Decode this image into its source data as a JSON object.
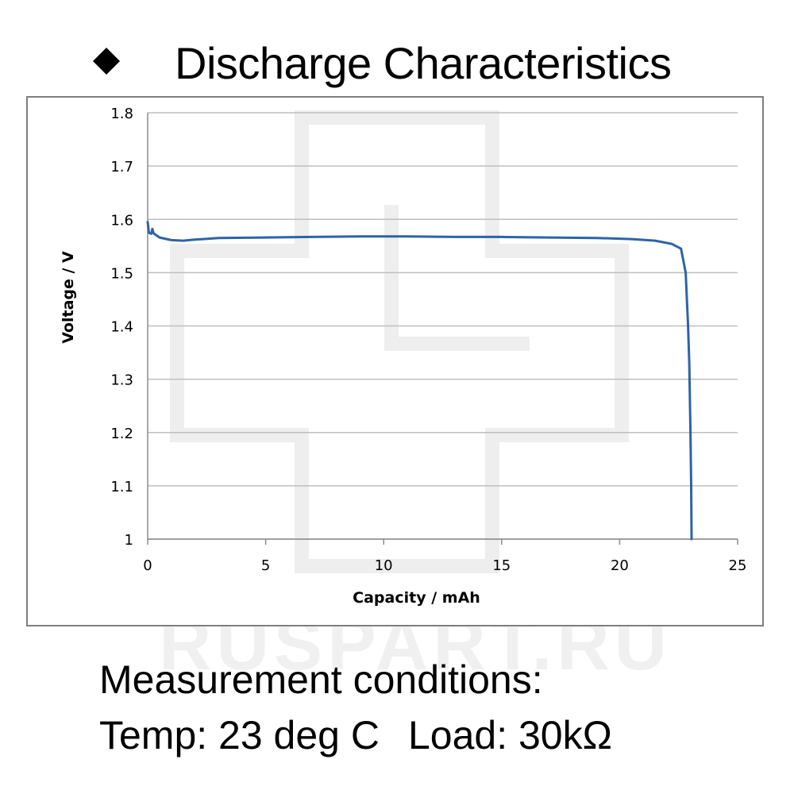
{
  "header": {
    "title": "Discharge Characteristics",
    "bullet_icon": "diamond-bullet-icon"
  },
  "watermark": {
    "text": "RUSPART.RU"
  },
  "footer": {
    "line1": "Measurement conditions:",
    "temp": "Temp: 23 deg C",
    "load": "Load: 30kΩ"
  },
  "colors": {
    "series": "#2e63a8",
    "grid": "#bfbfbf",
    "frame": "#7f7f7f",
    "watermark": "#eeeeee"
  },
  "chart_data": {
    "type": "line",
    "title": "",
    "xlabel": "Capacity  /  mAh",
    "ylabel": "Voltage  /  V",
    "xlim": [
      0,
      25
    ],
    "ylim": [
      1.0,
      1.8
    ],
    "xticks": [
      "0",
      "5",
      "10",
      "15",
      "20",
      "25"
    ],
    "yticks": [
      "1",
      "1.1",
      "1.2",
      "1.3",
      "1.4",
      "1.5",
      "1.6",
      "1.7",
      "1.8"
    ],
    "grid": true,
    "legend": "none",
    "series": [
      {
        "x": [
          0,
          0.05,
          0.15,
          0.2,
          0.25,
          0.3,
          0.5,
          1.0,
          1.5,
          2.0,
          3.0,
          5.0,
          7.0,
          9.0,
          11.0,
          13.0,
          15.0,
          17.0,
          19.0,
          20.5,
          21.5,
          22.2,
          22.6,
          22.8,
          22.9,
          22.95,
          23.0,
          23.03,
          23.05
        ],
        "y": [
          1.595,
          1.575,
          1.573,
          1.582,
          1.574,
          1.572,
          1.566,
          1.561,
          1.56,
          1.562,
          1.565,
          1.566,
          1.567,
          1.568,
          1.568,
          1.567,
          1.567,
          1.566,
          1.565,
          1.563,
          1.56,
          1.554,
          1.545,
          1.5,
          1.4,
          1.33,
          1.2,
          1.1,
          1.0
        ]
      }
    ]
  }
}
